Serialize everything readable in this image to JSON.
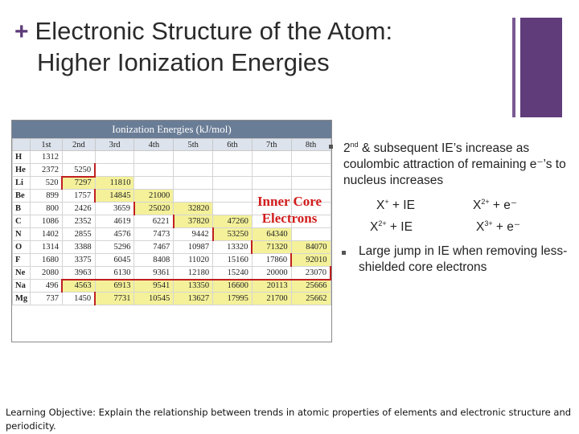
{
  "slide": {
    "title_plus": "+",
    "title_line1": "Electronic Structure of the Atom:",
    "title_line2": "Higher Ionization Energies"
  },
  "colors": {
    "accent": "#603c7a",
    "table_header": "#6a7d96",
    "core_fill": "#f4f19a",
    "core_label": "#d21c1c"
  },
  "table": {
    "title": "Ionization Energies (kJ/mol)",
    "columns": [
      "",
      "1st",
      "2nd",
      "3rd",
      "4th",
      "5th",
      "6th",
      "7th",
      "8th"
    ],
    "rows": [
      {
        "el": "H",
        "v": [
          "1312",
          "",
          "",
          "",
          "",
          "",
          "",
          ""
        ]
      },
      {
        "el": "He",
        "v": [
          "2372",
          "5250",
          "",
          "",
          "",
          "",
          "",
          ""
        ]
      },
      {
        "el": "Li",
        "v": [
          "520",
          "7297",
          "11810",
          "",
          "",
          "",
          "",
          ""
        ]
      },
      {
        "el": "Be",
        "v": [
          "899",
          "1757",
          "14845",
          "21000",
          "",
          "",
          "",
          ""
        ]
      },
      {
        "el": "B",
        "v": [
          "800",
          "2426",
          "3659",
          "25020",
          "32820",
          "",
          "",
          ""
        ]
      },
      {
        "el": "C",
        "v": [
          "1086",
          "2352",
          "4619",
          "6221",
          "37820",
          "47260",
          "",
          ""
        ]
      },
      {
        "el": "N",
        "v": [
          "1402",
          "2855",
          "4576",
          "7473",
          "9442",
          "53250",
          "64340",
          ""
        ]
      },
      {
        "el": "O",
        "v": [
          "1314",
          "3388",
          "5296",
          "7467",
          "10987",
          "13320",
          "71320",
          "84070"
        ]
      },
      {
        "el": "F",
        "v": [
          "1680",
          "3375",
          "6045",
          "8408",
          "11020",
          "15160",
          "17860",
          "92010"
        ]
      },
      {
        "el": "Ne",
        "v": [
          "2080",
          "3963",
          "6130",
          "9361",
          "12180",
          "15240",
          "20000",
          "23070"
        ]
      },
      {
        "el": "Na",
        "v": [
          "496",
          "4563",
          "6913",
          "9541",
          "13350",
          "16600",
          "20113",
          "25666"
        ]
      },
      {
        "el": "Mg",
        "v": [
          "737",
          "1450",
          "7731",
          "10545",
          "13627",
          "17995",
          "21700",
          "25662"
        ]
      }
    ],
    "core_label_line1": "Inner Core",
    "core_label_line2": "Electrons"
  },
  "bullets": {
    "b1_ord": "2",
    "b1_sup": "nd",
    "b1_text": " & subsequent IE’s increase as coulombic attraction of remaining e⁻’s to nucleus increases",
    "eq1_left_base": "X",
    "eq1_left_sup": "+",
    "eq1_left_rest": " + IE",
    "eq1_right_base": "X",
    "eq1_right_sup": "2+",
    "eq1_right_rest": " + e⁻",
    "eq2_left_base": "X",
    "eq2_left_sup": "2+",
    "eq2_left_rest": " + IE",
    "eq2_right_base": "X",
    "eq2_right_sup": "3+",
    "eq2_right_rest": " + e⁻",
    "b2_text": "Large jump in IE when removing less-shielded core electrons"
  },
  "footer": {
    "text": "Learning Objective: Explain the relationship between trends in atomic properties of elements and electronic structure and periodicity."
  }
}
